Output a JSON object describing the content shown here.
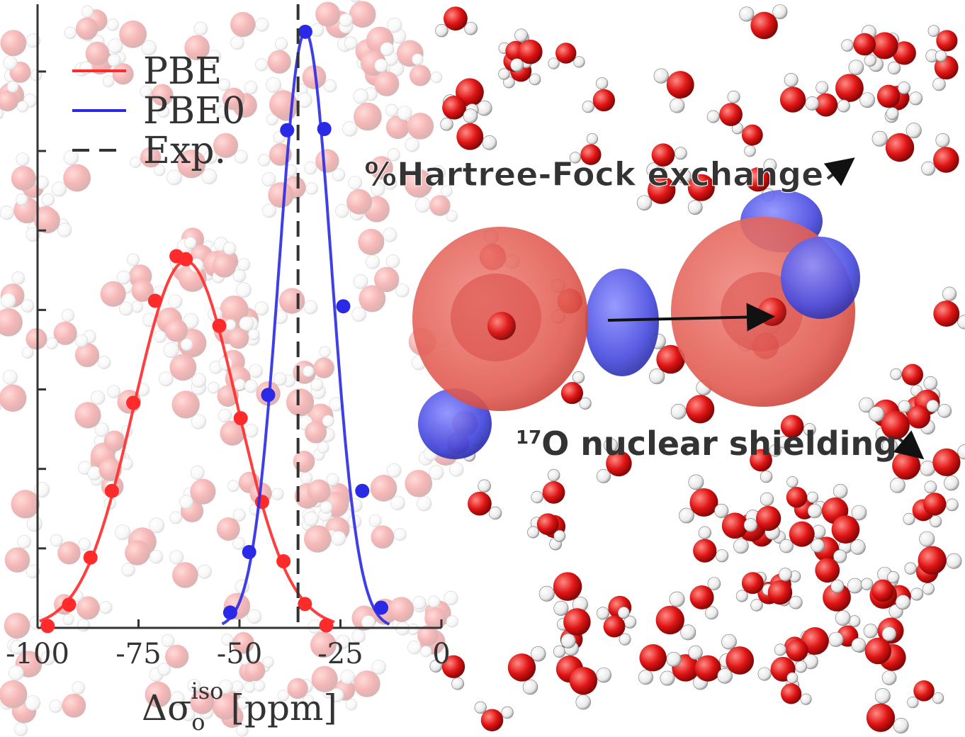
{
  "colors": {
    "pbe": "#ff2a2a",
    "pbe0": "#2a2ae6",
    "exp": "#333333",
    "axis": "#333333",
    "oxygen": "#e21a1a",
    "hydrogen": "#ffffff",
    "iso_red": "#e8564a",
    "iso_blue": "#4a4ee0",
    "annotation": "#333333"
  },
  "chart_data": {
    "type": "line",
    "xlabel_main": "Δσ",
    "xlabel_sub": "o",
    "xlabel_sup": "iso",
    "xlabel_unit": "[ppm]",
    "ylabel": "",
    "xlim": [
      -100,
      0
    ],
    "ylim": [
      0,
      1.02
    ],
    "x_ticks": [
      -100,
      -75,
      -50,
      -25,
      0
    ],
    "x_tick_labels": [
      "-100",
      "-75",
      "-50",
      "-25",
      "0"
    ],
    "y_ticks": [
      0,
      0.13,
      0.26,
      0.39,
      0.52,
      0.65,
      0.78,
      0.91,
      1.04
    ],
    "grid": false,
    "legend_position": "top-left",
    "series": [
      {
        "name": "PBE",
        "color": "#ff2a2a",
        "style": "solid",
        "fit": {
          "mean": -63.3,
          "sigma": 12.8,
          "amplitude": 0.6
        },
        "points_x": [
          -97.5,
          -92.2,
          -86.9,
          -81.6,
          -76.3,
          -70.9,
          -65.6,
          -63.3,
          -55.0,
          -49.7,
          -44.4,
          -39.1,
          -33.8,
          -28.5
        ],
        "points_y": [
          0.003,
          0.038,
          0.115,
          0.224,
          0.368,
          0.535,
          0.608,
          0.603,
          0.494,
          0.343,
          0.206,
          0.109,
          0.039,
          0.004
        ]
      },
      {
        "name": "PBE0",
        "color": "#2a2ae6",
        "style": "solid",
        "fit": {
          "mean": -33.7,
          "sigma": 6.5,
          "amplitude": 0.975
        },
        "points_x": [
          -52.3,
          -47.6,
          -42.9,
          -38.2,
          -33.7,
          -29.0,
          -24.3,
          -19.6,
          -14.9
        ],
        "points_y": [
          0.025,
          0.124,
          0.381,
          0.814,
          0.975,
          0.816,
          0.526,
          0.224,
          0.033
        ]
      },
      {
        "name": "Exp.",
        "color": "#333333",
        "style": "dashed",
        "x": -35.5
      }
    ],
    "annotations": [
      {
        "text": "%Hartree-Fock exchange"
      },
      {
        "prefix": "17",
        "text": "O nuclear shielding"
      }
    ]
  }
}
